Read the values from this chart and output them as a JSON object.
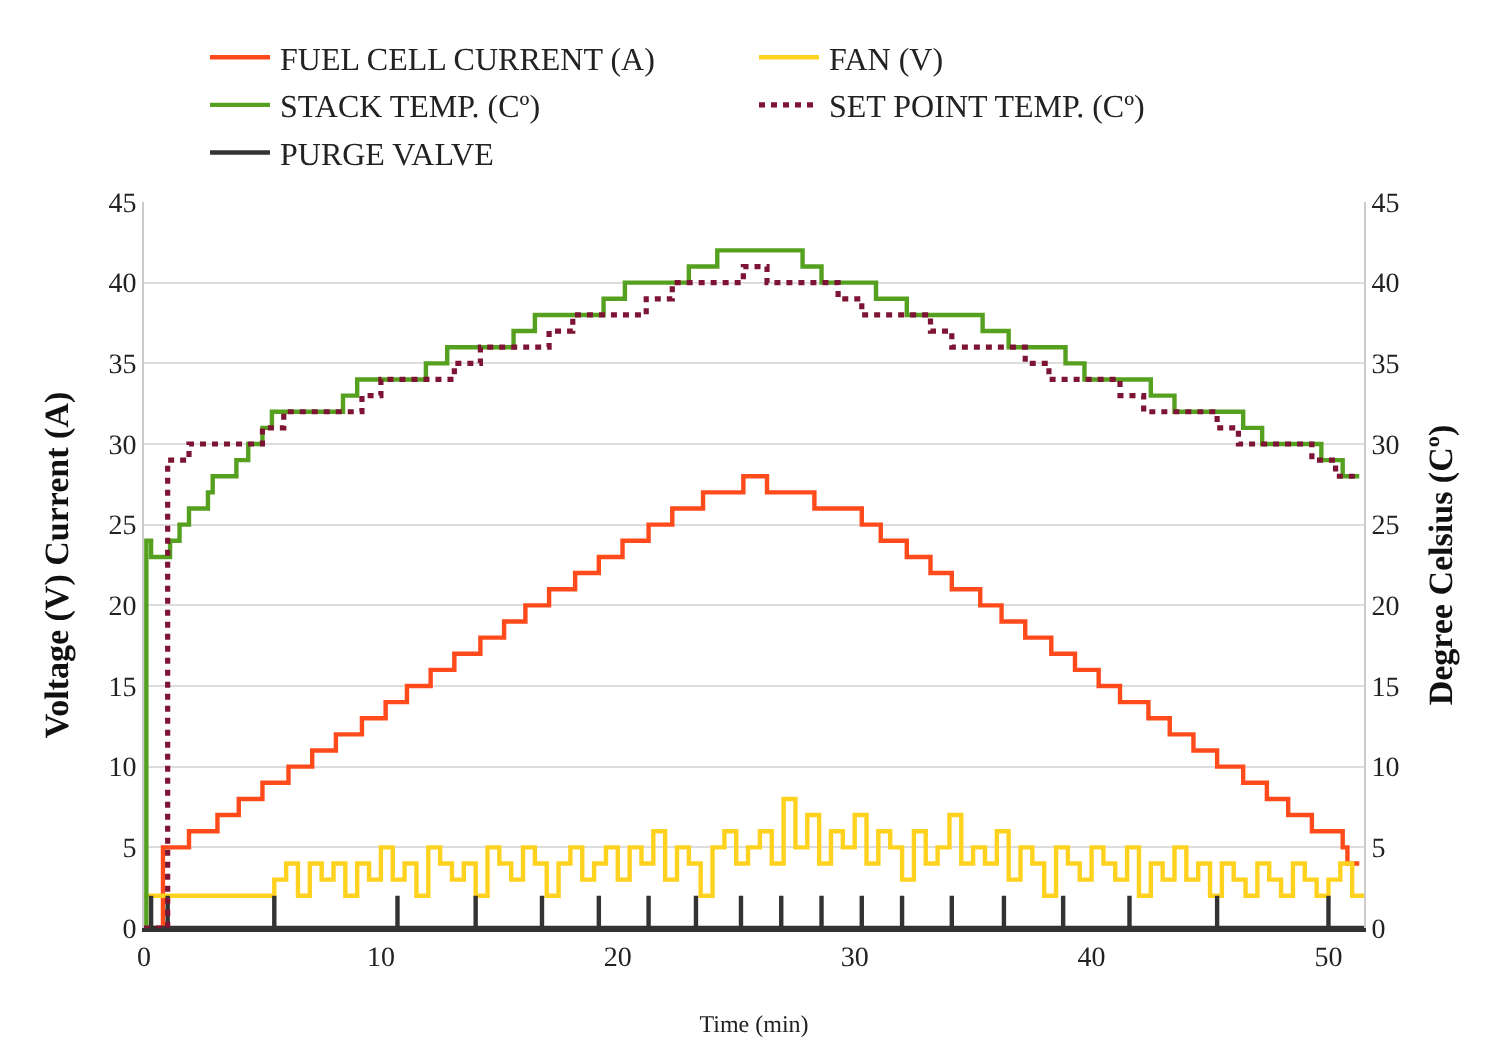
{
  "chart_data": {
    "type": "step",
    "xlabel": "Time (min)",
    "ylabel": "Voltage (V) Current (A)",
    "y2label": "Degree Celsius (Cº)",
    "xlim": [
      0,
      51.5
    ],
    "xticks": [
      0,
      10,
      20,
      30,
      40,
      50
    ],
    "ylim": [
      0,
      45
    ],
    "yticks": [
      0,
      5,
      10,
      15,
      20,
      25,
      30,
      35,
      40,
      45
    ],
    "y2lim": [
      0,
      45
    ],
    "y2ticks": [
      0,
      5,
      10,
      15,
      20,
      25,
      30,
      35,
      40,
      45
    ],
    "grid": "y",
    "legend": "top",
    "marker": "none",
    "series": [
      {
        "name": "FUEL CELL CURRENT (A)",
        "color": "#ff4a1c",
        "x": [
          0,
          0.8,
          1.9,
          3.1,
          4.0,
          5.0,
          6.1,
          7.1,
          8.1,
          9.2,
          10.2,
          11.1,
          12.1,
          13.1,
          14.2,
          15.2,
          16.1,
          17.1,
          18.2,
          19.2,
          20.2,
          21.3,
          22.3,
          23.6,
          25.3,
          26.3,
          28.3,
          30.3,
          31.1,
          32.2,
          33.2,
          34.1,
          35.3,
          36.2,
          37.2,
          38.3,
          39.3,
          40.3,
          41.2,
          42.4,
          43.3,
          44.3,
          45.3,
          46.4,
          47.4,
          48.3,
          49.3,
          50.6,
          50.8,
          51.3
        ],
        "values": [
          0,
          5,
          6,
          7,
          8,
          9,
          10,
          11,
          12,
          13,
          14,
          15,
          16,
          17,
          18,
          19,
          20,
          21,
          22,
          23,
          24,
          25,
          26,
          27,
          28,
          27,
          26,
          25,
          24,
          23,
          22,
          21,
          20,
          19,
          18,
          17,
          16,
          15,
          14,
          13,
          12,
          11,
          10,
          9,
          8,
          7,
          6,
          5,
          4,
          4
        ]
      },
      {
        "name": "FAN (V)",
        "color": "#ffd21f",
        "x": [
          0,
          5.0,
          5.5,
          6,
          6.5,
          7,
          7.5,
          8,
          8.5,
          9,
          9.5,
          10,
          10.5,
          11,
          11.5,
          12,
          12.5,
          13,
          13.5,
          14,
          14.5,
          15,
          15.5,
          16,
          16.5,
          17,
          17.5,
          18,
          18.5,
          19,
          19.5,
          20,
          20.5,
          21,
          21.5,
          22,
          22.5,
          23,
          23.5,
          24,
          24.5,
          25,
          25.5,
          26,
          26.5,
          27,
          27.5,
          28,
          28.5,
          29,
          29.5,
          30,
          30.5,
          31,
          31.5,
          32,
          32.5,
          33,
          33.5,
          34,
          34.5,
          35,
          35.5,
          36,
          36.5,
          37,
          37.5,
          38,
          38.5,
          39,
          39.5,
          40,
          40.5,
          41,
          41.5,
          42,
          42.5,
          43,
          43.5,
          44,
          44.5,
          45,
          45.5,
          46,
          46.5,
          47,
          47.5,
          48,
          48.5,
          49,
          49.5,
          50,
          50.5,
          51,
          51.5
        ],
        "values": [
          2,
          2,
          3,
          4,
          2,
          4,
          3,
          4,
          2,
          4,
          3,
          5,
          3,
          4,
          2,
          5,
          4,
          3,
          4,
          2,
          5,
          4,
          3,
          5,
          4,
          2,
          4,
          5,
          3,
          4,
          5,
          3,
          5,
          4,
          6,
          3,
          5,
          4,
          2,
          5,
          6,
          4,
          5,
          6,
          4,
          8,
          5,
          7,
          4,
          6,
          5,
          7,
          4,
          6,
          5,
          3,
          6,
          4,
          5,
          7,
          4,
          5,
          4,
          6,
          3,
          5,
          4,
          2,
          5,
          4,
          3,
          5,
          4,
          3,
          5,
          2,
          4,
          3,
          5,
          3,
          4,
          2,
          4,
          3,
          2,
          4,
          3,
          2,
          4,
          3,
          2,
          3,
          4,
          2,
          2
        ]
      },
      {
        "name": "STACK TEMP. (Cº)",
        "color": "#56a020",
        "axis": "y2",
        "x": [
          0,
          0.1,
          0.3,
          1.1,
          1.5,
          1.9,
          2.7,
          2.9,
          3.9,
          4.4,
          5.0,
          5.4,
          8.4,
          9.0,
          11.9,
          12.8,
          15.6,
          16.5,
          19.4,
          20.3,
          23.0,
          24.2,
          27.8,
          28.6,
          30.9,
          32.2,
          35.4,
          36.5,
          38.9,
          39.7,
          42.5,
          43.5,
          46.4,
          47.2,
          49.7,
          50.6,
          51.3
        ],
        "values": [
          0,
          24,
          23,
          24,
          25,
          26,
          27,
          28,
          29,
          30,
          31,
          32,
          33,
          34,
          35,
          36,
          37,
          38,
          39,
          40,
          41,
          42,
          41,
          40,
          39,
          38,
          37,
          36,
          35,
          34,
          33,
          32,
          31,
          30,
          29,
          28,
          28
        ]
      },
      {
        "name": "SET POINT TEMP. (Cº)",
        "color": "#7d1434",
        "axis": "y2",
        "line_style": "dotted",
        "x": [
          0,
          0.9,
          1.0,
          1.9,
          5.0,
          5.9,
          9.2,
          10.0,
          13.1,
          14.2,
          17.1,
          18.1,
          21.2,
          22.3,
          25.3,
          26.3,
          29.3,
          30.3,
          33.2,
          34.1,
          37.2,
          38.2,
          41.2,
          42.2,
          45.3,
          46.2,
          49.3,
          50.3,
          51.3
        ],
        "values": [
          0,
          0,
          29,
          30,
          31,
          32,
          33,
          34,
          35,
          36,
          37,
          38,
          39,
          40,
          41,
          40,
          39,
          38,
          37,
          36,
          35,
          34,
          33,
          32,
          31,
          30,
          29,
          28,
          28
        ]
      },
      {
        "name": "PURGE VALVE",
        "color": "#333333",
        "type": "line",
        "x": [
          0,
          0.3,
          0.3,
          0.3,
          1.0,
          1.0,
          1.0,
          5.5,
          5.5,
          5.5,
          10.7,
          10.7,
          10.7,
          14.0,
          14.0,
          14.0,
          16.8,
          16.8,
          16.8,
          19.2,
          19.2,
          19.2,
          21.3,
          21.3,
          21.3,
          23.3,
          23.3,
          23.3,
          25.2,
          25.2,
          25.2,
          26.9,
          26.9,
          26.9,
          28.6,
          28.6,
          28.6,
          30.3,
          30.3,
          30.3,
          32.0,
          32.0,
          32.0,
          34.1,
          34.1,
          34.1,
          36.3,
          36.3,
          36.3,
          38.8,
          38.8,
          38.8,
          41.6,
          41.6,
          41.6,
          45.3,
          45.3,
          45.3,
          50.0,
          50.0,
          50.0,
          51.5
        ],
        "values": [
          0,
          0,
          2,
          0,
          0,
          2,
          0,
          0,
          2,
          0,
          0,
          2,
          0,
          0,
          2,
          0,
          0,
          2,
          0,
          0,
          2,
          0,
          0,
          2,
          0,
          0,
          2,
          0,
          0,
          2,
          0,
          0,
          2,
          0,
          0,
          2,
          0,
          0,
          2,
          0,
          0,
          2,
          0,
          0,
          2,
          0,
          0,
          2,
          0,
          0,
          2,
          0,
          0,
          2,
          0,
          0,
          2,
          0,
          0,
          2,
          0,
          0
        ]
      }
    ]
  }
}
